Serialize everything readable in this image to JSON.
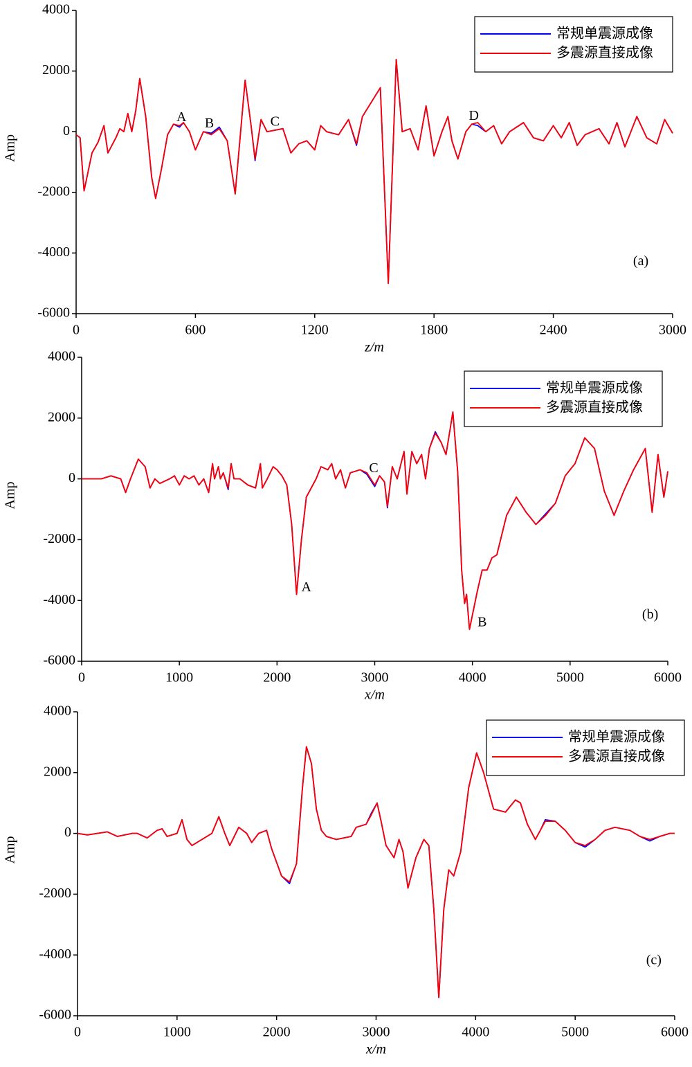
{
  "chart_data": [
    {
      "type": "line",
      "xlabel": "z/m",
      "ylabel": "Amp",
      "x": [
        0,
        20,
        40,
        80,
        110,
        140,
        160,
        200,
        220,
        240,
        260,
        280,
        300,
        320,
        350,
        380,
        400,
        430,
        460,
        490,
        520,
        540,
        570,
        600,
        640,
        680,
        720,
        760,
        800,
        830,
        850,
        880,
        900,
        930,
        960,
        1000,
        1040,
        1080,
        1120,
        1160,
        1200,
        1230,
        1260,
        1320,
        1370,
        1410,
        1440,
        1530,
        1570,
        1610,
        1640,
        1680,
        1720,
        1760,
        1800,
        1840,
        1870,
        1890,
        1920,
        1960,
        1990,
        2020,
        2060,
        2100,
        2140,
        2180,
        2250,
        2300,
        2350,
        2400,
        2440,
        2480,
        2520,
        2560,
        2630,
        2680,
        2720,
        2760,
        2820,
        2870,
        2920,
        2960,
        3000
      ],
      "series": [
        {
          "name": "常规单震源成像",
          "color": "#0000ff",
          "values": [
            -100,
            -200,
            -1950,
            -700,
            -350,
            200,
            -700,
            -200,
            100,
            0,
            600,
            0,
            700,
            1750,
            500,
            -1500,
            -2200,
            -1200,
            -100,
            250,
            150,
            300,
            0,
            -600,
            0,
            -50,
            150,
            -300,
            -2050,
            200,
            1700,
            200,
            -950,
            400,
            0,
            50,
            100,
            -700,
            -400,
            -300,
            -600,
            200,
            0,
            -100,
            400,
            -450,
            500,
            1450,
            -5000,
            2380,
            0,
            100,
            -600,
            850,
            -800,
            0,
            500,
            -300,
            -900,
            0,
            250,
            200,
            0,
            200,
            -400,
            0,
            300,
            -200,
            -300,
            200,
            -200,
            300,
            -450,
            -100,
            100,
            -400,
            300,
            -500,
            500,
            -200,
            -400,
            400,
            -50
          ]
        },
        {
          "name": "多震源直接成像",
          "color": "#ff0000",
          "values": [
            -100,
            -200,
            -1950,
            -700,
            -350,
            200,
            -700,
            -200,
            100,
            0,
            600,
            0,
            700,
            1750,
            500,
            -1500,
            -2200,
            -1200,
            -100,
            250,
            200,
            300,
            0,
            -600,
            0,
            -100,
            100,
            -300,
            -2050,
            200,
            1700,
            200,
            -900,
            400,
            0,
            50,
            100,
            -700,
            -400,
            -300,
            -600,
            200,
            0,
            -100,
            400,
            -400,
            500,
            1450,
            -5000,
            2380,
            0,
            100,
            -600,
            850,
            -800,
            0,
            500,
            -300,
            -900,
            0,
            250,
            300,
            0,
            200,
            -400,
            0,
            300,
            -200,
            -300,
            200,
            -200,
            300,
            -450,
            -100,
            100,
            -400,
            300,
            -500,
            500,
            -200,
            -400,
            400,
            -50
          ]
        }
      ],
      "xlim": [
        0,
        3000
      ],
      "xticks": [
        0,
        600,
        1200,
        1800,
        2400,
        3000
      ],
      "ylim": [
        -6000,
        4000
      ],
      "yticks": [
        4000,
        2000,
        0,
        -2000,
        -4000,
        -6000
      ],
      "annotations": [
        {
          "text": "A",
          "x": 530,
          "y": 450
        },
        {
          "text": "B",
          "x": 670,
          "y": 250
        },
        {
          "text": "C",
          "x": 1000,
          "y": 300
        },
        {
          "text": "D",
          "x": 2000,
          "y": 500
        },
        {
          "text": "(a)",
          "x": 2840,
          "y": -4300
        }
      ]
    },
    {
      "type": "line",
      "xlabel": "x/m",
      "ylabel": "Amp",
      "x": [
        0,
        200,
        300,
        400,
        450,
        500,
        580,
        650,
        700,
        750,
        800,
        900,
        950,
        1000,
        1050,
        1100,
        1150,
        1200,
        1250,
        1300,
        1340,
        1360,
        1400,
        1420,
        1450,
        1500,
        1530,
        1560,
        1620,
        1700,
        1780,
        1830,
        1850,
        1900,
        1960,
        2000,
        2050,
        2100,
        2150,
        2200,
        2250,
        2300,
        2400,
        2450,
        2520,
        2560,
        2600,
        2650,
        2700,
        2750,
        2850,
        2920,
        3000,
        3050,
        3100,
        3130,
        3180,
        3230,
        3300,
        3330,
        3380,
        3430,
        3480,
        3520,
        3560,
        3620,
        3680,
        3730,
        3800,
        3850,
        3890,
        3920,
        3940,
        3970,
        4050,
        4100,
        4150,
        4200,
        4250,
        4350,
        4450,
        4550,
        4650,
        4750,
        4850,
        4950,
        5050,
        5150,
        5250,
        5350,
        5450,
        5550,
        5650,
        5770,
        5840,
        5900,
        5960,
        6000
      ],
      "series": [
        {
          "name": "常规单震源成像",
          "color": "#0000ff",
          "values": [
            0,
            0,
            100,
            0,
            -450,
            0,
            650,
            400,
            -300,
            0,
            -150,
            0,
            100,
            -200,
            100,
            0,
            100,
            -200,
            0,
            -450,
            500,
            0,
            400,
            0,
            200,
            -350,
            500,
            0,
            0,
            -200,
            -300,
            500,
            -300,
            0,
            400,
            300,
            100,
            -200,
            -1500,
            -3800,
            -2000,
            -600,
            0,
            400,
            300,
            500,
            0,
            300,
            -300,
            200,
            300,
            150,
            -250,
            100,
            -100,
            -950,
            400,
            0,
            900,
            -500,
            900,
            500,
            800,
            0,
            1000,
            1550,
            1200,
            800,
            2200,
            200,
            -3000,
            -4100,
            -3800,
            -4950,
            -3700,
            -3000,
            -3000,
            -2600,
            -2500,
            -1200,
            -600,
            -1100,
            -1500,
            -1150,
            -800,
            100,
            500,
            1350,
            1000,
            -400,
            -1200,
            -400,
            300,
            1000,
            -1100,
            800,
            -600,
            250
          ]
        },
        {
          "name": "多震源直接成像",
          "color": "#ff0000",
          "values": [
            0,
            0,
            100,
            0,
            -450,
            0,
            650,
            400,
            -300,
            0,
            -150,
            0,
            100,
            -200,
            100,
            0,
            100,
            -200,
            0,
            -450,
            500,
            0,
            400,
            0,
            200,
            -300,
            500,
            0,
            0,
            -200,
            -300,
            500,
            -300,
            0,
            400,
            300,
            100,
            -200,
            -1500,
            -3800,
            -2000,
            -600,
            0,
            400,
            300,
            500,
            0,
            300,
            -300,
            200,
            300,
            200,
            -200,
            100,
            -100,
            -900,
            400,
            0,
            900,
            -500,
            900,
            500,
            800,
            0,
            1000,
            1500,
            1200,
            800,
            2200,
            200,
            -3000,
            -4100,
            -3800,
            -4950,
            -3700,
            -3000,
            -3000,
            -2600,
            -2500,
            -1200,
            -600,
            -1100,
            -1500,
            -1200,
            -800,
            100,
            500,
            1350,
            1000,
            -400,
            -1200,
            -400,
            300,
            1000,
            -1100,
            800,
            -600,
            250
          ]
        }
      ],
      "xlim": [
        0,
        6000
      ],
      "xticks": [
        0,
        1000,
        2000,
        3000,
        4000,
        5000,
        6000
      ],
      "ylim": [
        -6000,
        4000
      ],
      "yticks": [
        4000,
        2000,
        0,
        -2000,
        -4000,
        -6000
      ],
      "annotations": [
        {
          "text": "A",
          "x": 2300,
          "y": -3600
        },
        {
          "text": "B",
          "x": 4100,
          "y": -4750
        },
        {
          "text": "C",
          "x": 2990,
          "y": 320
        },
        {
          "text": "(b)",
          "x": 5820,
          "y": -4500
        }
      ]
    },
    {
      "type": "line",
      "xlabel": "x/m",
      "ylabel": "Amp",
      "x": [
        0,
        100,
        200,
        300,
        400,
        550,
        600,
        700,
        800,
        850,
        900,
        1000,
        1050,
        1100,
        1150,
        1250,
        1350,
        1420,
        1480,
        1530,
        1620,
        1700,
        1750,
        1820,
        1900,
        1950,
        2050,
        2130,
        2200,
        2260,
        2300,
        2350,
        2400,
        2450,
        2500,
        2600,
        2750,
        2800,
        2900,
        2950,
        3010,
        3050,
        3100,
        3180,
        3230,
        3270,
        3320,
        3400,
        3480,
        3530,
        3580,
        3630,
        3680,
        3730,
        3780,
        3850,
        3930,
        4010,
        4080,
        4180,
        4300,
        4400,
        4450,
        4520,
        4600,
        4650,
        4700,
        4800,
        4900,
        5000,
        5100,
        5200,
        5300,
        5400,
        5550,
        5650,
        5750,
        5850,
        5950,
        6000
      ],
      "series": [
        {
          "name": "常规单震源成像",
          "color": "#0000ff",
          "values": [
            0,
            -50,
            0,
            50,
            -100,
            0,
            0,
            -150,
            100,
            150,
            -100,
            0,
            450,
            -200,
            -400,
            -200,
            0,
            550,
            0,
            -400,
            200,
            0,
            -300,
            0,
            100,
            -500,
            -1400,
            -1650,
            -1000,
            1500,
            2850,
            2300,
            800,
            100,
            -100,
            -200,
            -100,
            200,
            300,
            650,
            1000,
            400,
            -400,
            -800,
            -200,
            -600,
            -1800,
            -800,
            -200,
            -400,
            -2500,
            -5400,
            -2500,
            -1200,
            -1400,
            -600,
            1500,
            2650,
            2000,
            800,
            700,
            1100,
            1000,
            300,
            -200,
            100,
            450,
            400,
            100,
            -300,
            -450,
            -200,
            100,
            200,
            100,
            -100,
            -250,
            -100,
            0,
            0
          ]
        },
        {
          "name": "多震源直接成像",
          "color": "#ff0000",
          "values": [
            0,
            -50,
            0,
            50,
            -100,
            0,
            0,
            -150,
            100,
            150,
            -100,
            0,
            450,
            -200,
            -400,
            -200,
            0,
            550,
            0,
            -400,
            200,
            0,
            -300,
            0,
            100,
            -500,
            -1400,
            -1600,
            -1000,
            1500,
            2850,
            2300,
            800,
            100,
            -100,
            -200,
            -100,
            200,
            300,
            600,
            1000,
            400,
            -400,
            -800,
            -200,
            -600,
            -1800,
            -800,
            -200,
            -400,
            -2500,
            -5400,
            -2500,
            -1200,
            -1400,
            -600,
            1500,
            2650,
            2000,
            800,
            700,
            1100,
            1000,
            300,
            -200,
            100,
            400,
            400,
            100,
            -300,
            -400,
            -200,
            100,
            200,
            100,
            -100,
            -200,
            -100,
            0,
            0
          ]
        }
      ],
      "xlim": [
        0,
        6000
      ],
      "xticks": [
        0,
        1000,
        2000,
        3000,
        4000,
        5000,
        6000
      ],
      "ylim": [
        -6000,
        4000
      ],
      "yticks": [
        4000,
        2000,
        0,
        -2000,
        -4000,
        -6000
      ],
      "annotations": [
        {
          "text": "(c)",
          "x": 5790,
          "y": -4200
        }
      ]
    }
  ]
}
